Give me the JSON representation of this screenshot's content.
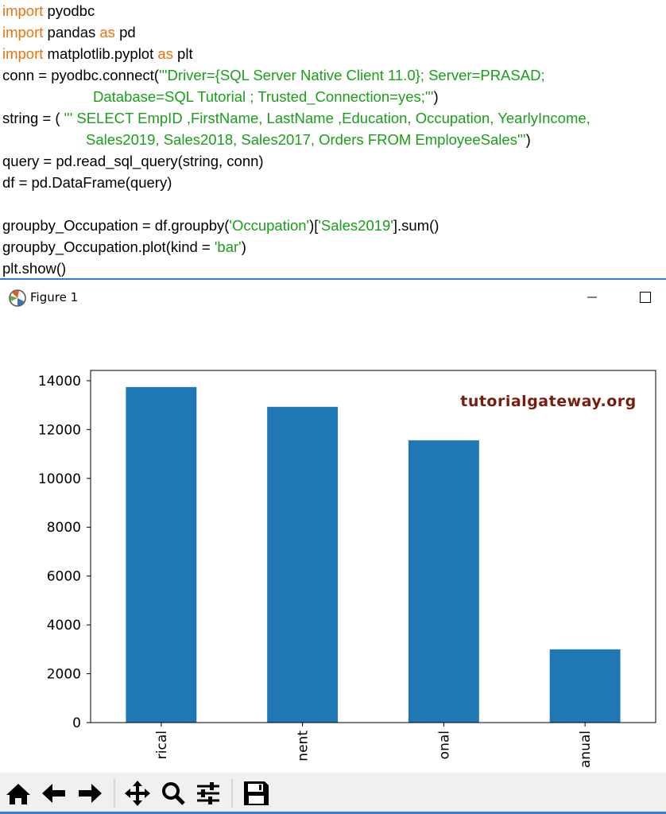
{
  "code": {
    "lines": [
      [
        {
          "text": "import",
          "color": "#e8730c"
        },
        {
          "text": " pyodbc",
          "color": "#000000"
        }
      ],
      [
        {
          "text": "import",
          "color": "#e8730c"
        },
        {
          "text": " pandas ",
          "color": "#000000"
        },
        {
          "text": "as",
          "color": "#e8730c"
        },
        {
          "text": " pd",
          "color": "#000000"
        }
      ],
      [
        {
          "text": "import",
          "color": "#e8730c"
        },
        {
          "text": " matplotlib.pyplot ",
          "color": "#000000"
        },
        {
          "text": "as",
          "color": "#e8730c"
        },
        {
          "text": " plt",
          "color": "#000000"
        }
      ],
      [
        {
          "text": "conn = pyodbc.connect(",
          "color": "#000000"
        },
        {
          "text": "'''Driver={SQL Server Native Client 11.0}; Server=PRASAD;",
          "color": "#1a9e1a"
        }
      ],
      [
        {
          "text": "Database=SQL Tutorial ; Trusted_Connection=yes;'''",
          "color": "#1a9e1a"
        },
        {
          "text": ")",
          "color": "#000000"
        }
      ],
      [
        {
          "text": "string = ( ",
          "color": "#000000"
        },
        {
          "text": "''' SELECT EmpID ,FirstName, LastName ,Education, Occupation, YearlyIncome,",
          "color": "#1a9e1a"
        }
      ],
      [
        {
          "text": "Sales2019, Sales2018, Sales2017, Orders FROM EmployeeSales'''",
          "color": "#1a9e1a"
        },
        {
          "text": ")",
          "color": "#000000"
        }
      ],
      [
        {
          "text": "query = pd.read_sql_query(string, conn)",
          "color": "#000000"
        }
      ],
      [
        {
          "text": "df = pd.DataFrame(query)",
          "color": "#000000"
        }
      ],
      [
        {
          "text": "groupby_Occupation = df.groupby(",
          "color": "#000000"
        },
        {
          "text": "'Occupation'",
          "color": "#1a9e1a"
        },
        {
          "text": ")[",
          "color": "#000000"
        },
        {
          "text": "'Sales2019'",
          "color": "#1a9e1a"
        },
        {
          "text": "].sum()",
          "color": "#000000"
        }
      ],
      [
        {
          "text": "groupby_Occupation.plot(kind = ",
          "color": "#000000"
        },
        {
          "text": "'bar'",
          "color": "#1a9e1a"
        },
        {
          "text": ")",
          "color": "#000000"
        }
      ],
      [
        {
          "text": "plt.show()",
          "color": "#000000"
        }
      ]
    ]
  },
  "window": {
    "title": "Figure 1"
  },
  "chart_data": {
    "type": "bar",
    "categories": [
      "rical",
      "nent",
      "onal",
      "anual"
    ],
    "values": [
      13740,
      12930,
      11560,
      3000
    ],
    "color": "#1f77b4",
    "ylim": [
      0,
      14420
    ],
    "yticks": [
      0,
      2000,
      4000,
      6000,
      8000,
      10000,
      12000,
      14000
    ],
    "annotation": "tutorialgateway.org"
  }
}
